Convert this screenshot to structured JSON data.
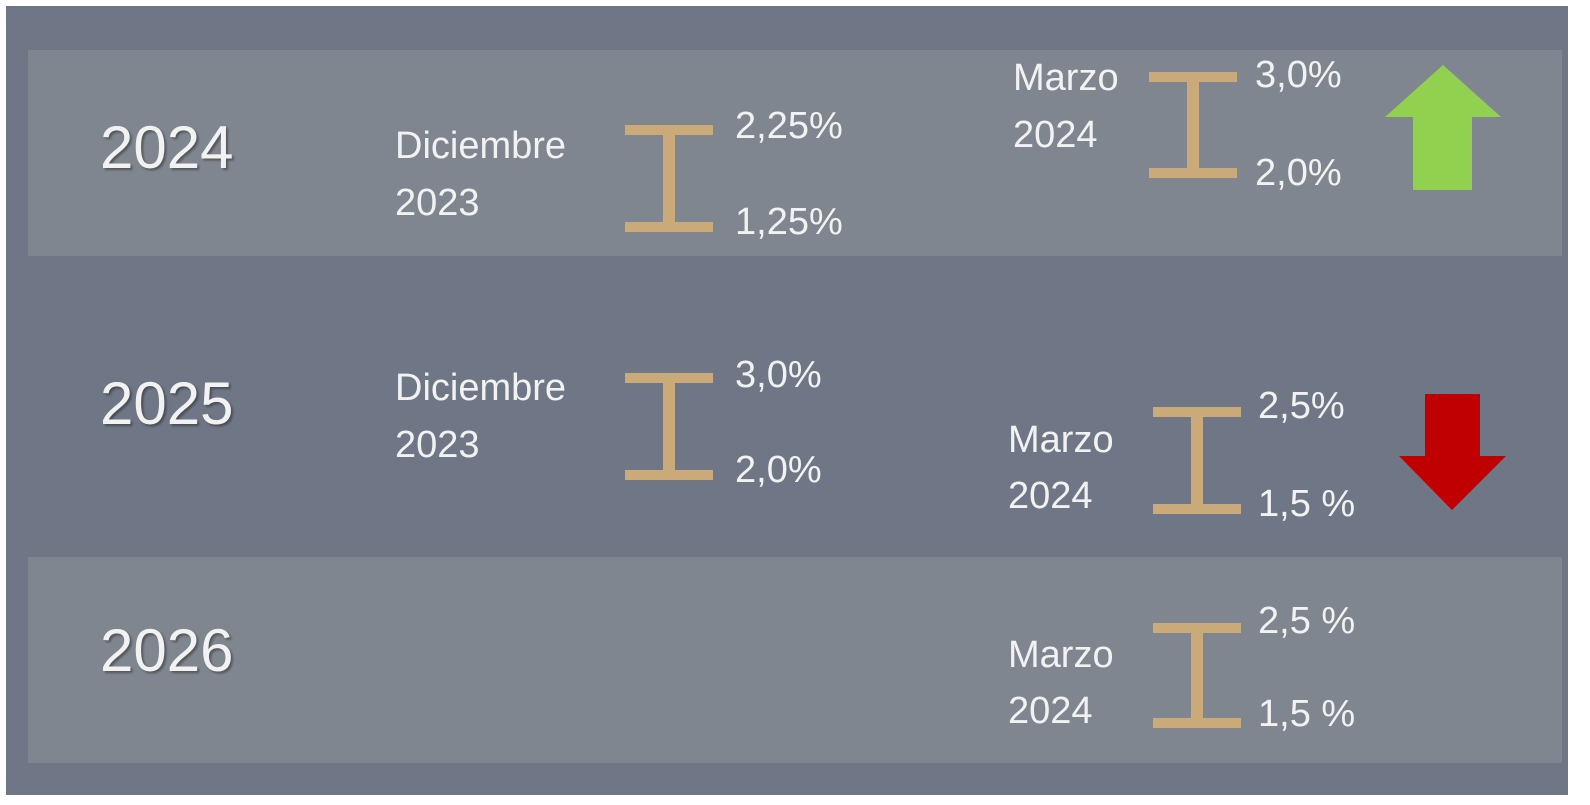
{
  "rows": [
    {
      "year": "2024",
      "december": {
        "month": "Diciembre",
        "year": "2023",
        "high": "2,25%",
        "low": "1,25%"
      },
      "march": {
        "month": "Marzo",
        "year": "2024",
        "high": "3,0%",
        "low": "2,0%"
      }
    },
    {
      "year": "2025",
      "december": {
        "month": "Diciembre",
        "year": "2023",
        "high": "3,0%",
        "low": "2,0%"
      },
      "march": {
        "month": "Marzo",
        "year": "2024",
        "high": "2,5%",
        "low": "1,5 %"
      }
    },
    {
      "year": "2026",
      "march": {
        "month": "Marzo",
        "year": "2024",
        "high": "2,5 %",
        "low": "1,5 %"
      }
    }
  ]
}
